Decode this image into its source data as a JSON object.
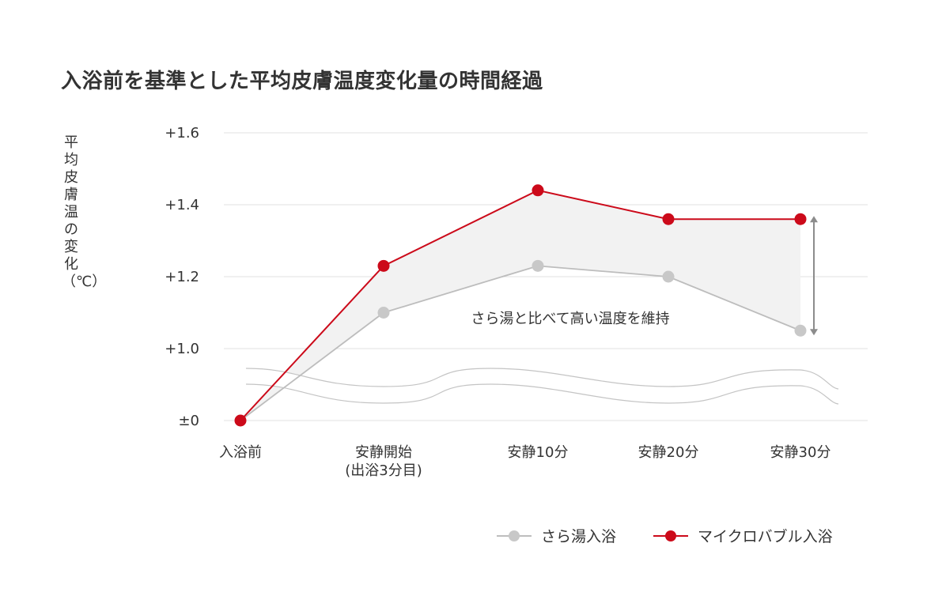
{
  "title": "入浴前を基準とした平均皮膚温度変化量の時間経過",
  "ylabel": "平均皮膚温の変化（℃）",
  "annotation": "さら湯と比べて高い温度を維持",
  "colors": {
    "plain": "#c8c8c8",
    "plain_line": "#bdbdbd",
    "micro": "#cc0a1a",
    "fill": "#f2f2f2",
    "grid": "#e0e0e0",
    "arrow": "#8c8c8c"
  },
  "chart_data": {
    "type": "line",
    "title": "入浴前を基準とした平均皮膚温度変化量の時間経過",
    "ylabel": "平均皮膚温の変化（℃）",
    "xlabel": "",
    "categories": [
      "入浴前",
      "安静開始\n(出浴3分目)",
      "安静10分",
      "安静20分",
      "安静30分"
    ],
    "category_lines": [
      [
        "入浴前"
      ],
      [
        "安静開始",
        "(出浴3分目)"
      ],
      [
        "安静10分"
      ],
      [
        "安静20分"
      ],
      [
        "安静30分"
      ]
    ],
    "ylim": [
      0,
      1.6
    ],
    "axis_break": [
      0,
      1.0
    ],
    "yticks": [
      0,
      1.0,
      1.2,
      1.4,
      1.6
    ],
    "ytick_labels": [
      "±0",
      "+1.0",
      "+1.2",
      "+1.4",
      "+1.6"
    ],
    "grid": true,
    "legend_position": "bottom-right",
    "series": [
      {
        "name": "さら湯入浴",
        "values": [
          0,
          1.1,
          1.23,
          1.2,
          1.05
        ]
      },
      {
        "name": "マイクロバブル入浴",
        "values": [
          0,
          1.23,
          1.44,
          1.36,
          1.36
        ]
      }
    ]
  }
}
